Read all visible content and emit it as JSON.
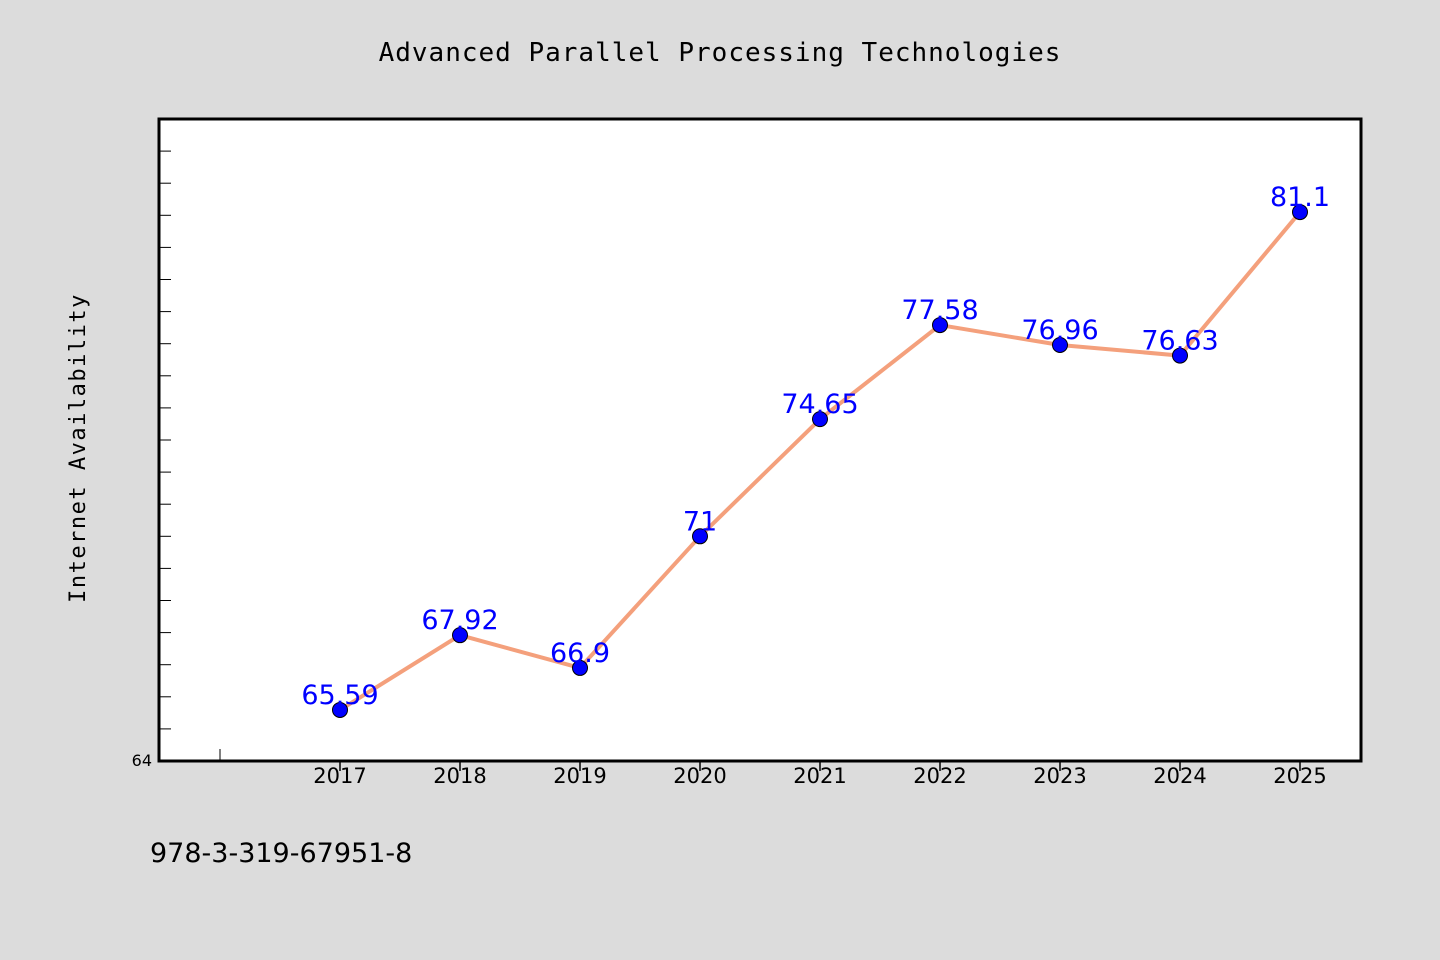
{
  "chart_data": {
    "type": "line",
    "title": "Advanced Parallel Processing Technologies",
    "xlabel": "",
    "ylabel": "Internet Availability",
    "categories": [
      "2017",
      "2018",
      "2019",
      "2020",
      "2021",
      "2022",
      "2023",
      "2024",
      "2025"
    ],
    "series": [
      {
        "values": [
          65.59,
          67.92,
          66.9,
          71,
          74.65,
          77.58,
          76.96,
          76.63,
          81.1
        ],
        "line_color": "#f4a07c",
        "marker_color": "#0000ff"
      }
    ],
    "data_labels": [
      "65.59",
      "67.92",
      "66.9",
      "71",
      "74.65",
      "77.58",
      "76.96",
      "76.63",
      "81.1"
    ],
    "ylim": [
      64,
      84
    ],
    "yticks_labeled": [
      "64"
    ],
    "grid": false,
    "legend": "none"
  },
  "footer": {
    "isbn": "978-3-319-67951-8"
  },
  "colors": {
    "background": "#dcdcdc",
    "plot_background": "#ffffff",
    "line": "#f4a07c",
    "marker": "#0000ff",
    "label": "#0000ff"
  }
}
